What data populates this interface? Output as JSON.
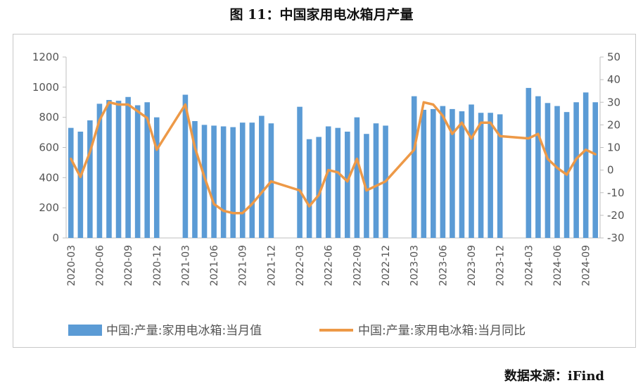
{
  "figure": {
    "title": "图 11：中国家用电冰箱月产量",
    "source": "数据来源：iFind"
  },
  "colors": {
    "bar": "#5b9bd5",
    "line": "#ed9947",
    "axis": "#bfbfbf",
    "text": "#555555"
  },
  "chart_data": {
    "type": "bar+line",
    "x": [
      "2020-03",
      "2020-04",
      "2020-05",
      "2020-06",
      "2020-07",
      "2020-08",
      "2020-09",
      "2020-10",
      "2020-11",
      "2020-12",
      "2021-01",
      "2021-02",
      "2021-03",
      "2021-04",
      "2021-05",
      "2021-06",
      "2021-07",
      "2021-08",
      "2021-09",
      "2021-10",
      "2021-11",
      "2021-12",
      "2022-01",
      "2022-02",
      "2022-03",
      "2022-04",
      "2022-05",
      "2022-06",
      "2022-07",
      "2022-08",
      "2022-09",
      "2022-10",
      "2022-11",
      "2022-12",
      "2023-01",
      "2023-02",
      "2023-03",
      "2023-04",
      "2023-05",
      "2023-06",
      "2023-07",
      "2023-08",
      "2023-09",
      "2023-10",
      "2023-11",
      "2023-12",
      "2024-01",
      "2024-02",
      "2024-03",
      "2024-04",
      "2024-05",
      "2024-06",
      "2024-07",
      "2024-08",
      "2024-09",
      "2024-10"
    ],
    "x_tick_labels": [
      "2020-03",
      "2020-06",
      "2020-09",
      "2020-12",
      "2021-03",
      "2021-06",
      "2021-09",
      "2021-12",
      "2022-03",
      "2022-06",
      "2022-09",
      "2022-12",
      "2023-03",
      "2023-06",
      "2023-09",
      "2023-12",
      "2024-03",
      "2024-06",
      "2024-09"
    ],
    "series": [
      {
        "name": "中国:产量:家用电冰箱:当月值",
        "type": "bar",
        "axis": "left",
        "values": [
          730,
          705,
          780,
          890,
          915,
          910,
          935,
          880,
          900,
          800,
          null,
          null,
          950,
          775,
          750,
          745,
          740,
          735,
          765,
          765,
          810,
          760,
          null,
          null,
          870,
          655,
          670,
          740,
          730,
          705,
          800,
          690,
          760,
          745,
          null,
          null,
          940,
          850,
          855,
          875,
          855,
          840,
          885,
          830,
          830,
          820,
          null,
          null,
          995,
          940,
          895,
          875,
          835,
          900,
          965,
          900
        ]
      },
      {
        "name": "中国:产量:家用电冰箱:当月同比",
        "type": "line",
        "axis": "right",
        "values": [
          5,
          -3,
          8,
          22,
          30,
          29,
          29,
          26,
          23,
          9,
          null,
          null,
          29,
          10,
          -3,
          -15,
          -18,
          -19,
          -19,
          -15,
          -10,
          -5,
          null,
          null,
          -9,
          -16,
          -11,
          0,
          -1,
          -5,
          5,
          -9,
          -7,
          -5,
          null,
          null,
          9,
          30,
          29,
          24,
          16,
          21,
          14,
          21,
          21,
          15,
          null,
          null,
          14,
          16,
          5,
          1,
          -2,
          5,
          9,
          7
        ]
      }
    ],
    "y_left": {
      "min": 0,
      "max": 1200,
      "ticks": [
        0,
        200,
        400,
        600,
        800,
        1000,
        1200
      ]
    },
    "y_right": {
      "min": -30,
      "max": 50,
      "ticks": [
        -30,
        -20,
        -10,
        0,
        10,
        20,
        30,
        40,
        50
      ]
    },
    "legend_position": "bottom",
    "grid": false
  }
}
